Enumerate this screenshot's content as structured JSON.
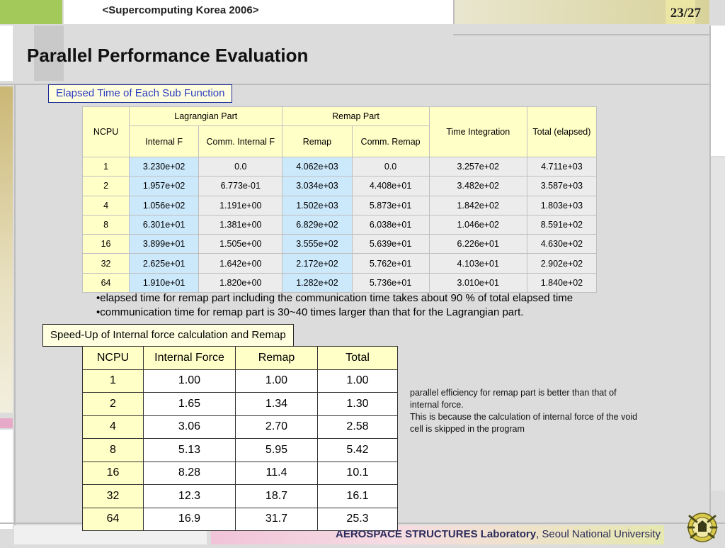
{
  "header": {
    "conference": "<Supercomputing Korea 2006>",
    "page": "23/27"
  },
  "title": "Parallel Performance Evaluation",
  "section1": {
    "caption": "Elapsed Time of Each Sub Function",
    "headers": {
      "ncpu": "NCPU",
      "lagrangian": "Lagrangian Part",
      "remap_part": "Remap Part",
      "time_integration": "Time Integration",
      "total": "Total (elapsed)",
      "internal_f": "Internal F",
      "comm_internal_f": "Comm. Internal F",
      "remap": "Remap",
      "comm_remap": "Comm. Remap"
    },
    "rows": [
      [
        "1",
        "3.230e+02",
        "0.0",
        "4.062e+03",
        "0.0",
        "3.257e+02",
        "4.711e+03"
      ],
      [
        "2",
        "1.957e+02",
        "6.773e-01",
        "3.034e+03",
        "4.408e+01",
        "3.482e+02",
        "3.587e+03"
      ],
      [
        "4",
        "1.056e+02",
        "1.191e+00",
        "1.502e+03",
        "5.873e+01",
        "1.842e+02",
        "1.803e+03"
      ],
      [
        "8",
        "6.301e+01",
        "1.381e+00",
        "6.829e+02",
        "6.038e+01",
        "1.046e+02",
        "8.591e+02"
      ],
      [
        "16",
        "3.899e+01",
        "1.505e+00",
        "3.555e+02",
        "5.639e+01",
        "6.226e+01",
        "4.630e+02"
      ],
      [
        "32",
        "2.625e+01",
        "1.642e+00",
        "2.172e+02",
        "5.762e+01",
        "4.103e+01",
        "2.902e+02"
      ],
      [
        "64",
        "1.910e+01",
        "1.820e+00",
        "1.282e+02",
        "5.736e+01",
        "3.010e+01",
        "1.840e+02"
      ]
    ]
  },
  "bullets": [
    "•elapsed time for remap part including the communication time takes about 90 % of total elapsed time",
    "•communication time for remap part is 30~40 times larger than that for the Lagrangian part."
  ],
  "section2": {
    "caption": "Speed-Up of Internal force calculation and Remap",
    "headers": [
      "NCPU",
      "Internal Force",
      "Remap",
      "Total"
    ],
    "rows": [
      [
        "1",
        "1.00",
        "1.00",
        "1.00"
      ],
      [
        "2",
        "1.65",
        "1.34",
        "1.30"
      ],
      [
        "4",
        "3.06",
        "2.70",
        "2.58"
      ],
      [
        "8",
        "5.13",
        "5.95",
        "5.42"
      ],
      [
        "16",
        "8.28",
        "11.4",
        "10.1"
      ],
      [
        "32",
        "12.3",
        "18.7",
        "16.1"
      ],
      [
        "64",
        "16.9",
        "31.7",
        "25.3"
      ]
    ]
  },
  "note": {
    "line1": "parallel efficiency for remap part is better than that of internal force.",
    "line2": "This is because the calculation of internal force of the void cell is skipped in the program"
  },
  "footer": {
    "lab": "AEROSPACE STRUCTURES Laboratory",
    "university": ", Seoul National University"
  },
  "logo": {
    "icon": "university-seal-icon"
  }
}
